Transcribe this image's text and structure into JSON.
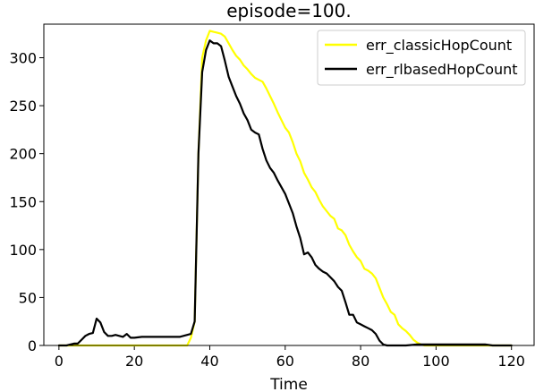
{
  "chart_data": {
    "type": "line",
    "title": "episode=100.",
    "xlabel": "Time",
    "ylabel": "",
    "xlim": [
      -4,
      126
    ],
    "ylim": [
      0,
      335
    ],
    "xticks": [
      0,
      20,
      40,
      60,
      80,
      100,
      120
    ],
    "yticks": [
      0,
      50,
      100,
      150,
      200,
      250,
      300
    ],
    "grid": false,
    "legend_position": "top-right",
    "series": [
      {
        "name": "err_classicHopCount",
        "color": "#ffff00",
        "x": [
          0,
          2,
          4,
          6,
          8,
          10,
          12,
          14,
          16,
          18,
          20,
          22,
          24,
          26,
          28,
          30,
          32,
          34,
          35,
          36,
          37,
          38,
          39,
          40,
          41,
          42,
          43,
          44,
          45,
          46,
          47,
          48,
          49,
          50,
          51,
          52,
          53,
          54,
          55,
          56,
          57,
          58,
          59,
          60,
          61,
          62,
          63,
          64,
          65,
          66,
          67,
          68,
          69,
          70,
          71,
          72,
          73,
          74,
          75,
          76,
          77,
          78,
          79,
          80,
          81,
          82,
          83,
          84,
          85,
          86,
          87,
          88,
          89,
          90,
          91,
          92,
          93,
          94,
          95,
          96,
          97,
          98,
          100,
          105,
          110,
          115,
          120
        ],
        "y": [
          0,
          0,
          0,
          0,
          0,
          0,
          0,
          0,
          0,
          0,
          0,
          0,
          0,
          0,
          0,
          0,
          0,
          0,
          8,
          25,
          200,
          300,
          318,
          328,
          327,
          326,
          325,
          322,
          315,
          308,
          302,
          298,
          292,
          288,
          283,
          279,
          277,
          275,
          268,
          260,
          252,
          243,
          235,
          227,
          222,
          212,
          200,
          192,
          180,
          173,
          165,
          160,
          152,
          145,
          140,
          135,
          132,
          122,
          120,
          115,
          105,
          98,
          92,
          88,
          80,
          78,
          75,
          70,
          60,
          50,
          43,
          35,
          32,
          22,
          18,
          15,
          11,
          6,
          3,
          1,
          0,
          0,
          0,
          0,
          0,
          0,
          0
        ]
      },
      {
        "name": "err_rlbasedHopCount",
        "color": "#000000",
        "x": [
          0,
          2,
          3,
          4,
          5,
          6,
          7,
          8,
          9,
          10,
          11,
          12,
          13,
          14,
          15,
          16,
          17,
          18,
          19,
          20,
          22,
          24,
          26,
          28,
          30,
          32,
          33,
          34,
          35,
          36,
          37,
          38,
          39,
          40,
          41,
          42,
          43,
          44,
          45,
          46,
          47,
          48,
          49,
          50,
          51,
          52,
          53,
          54,
          55,
          56,
          57,
          58,
          59,
          60,
          61,
          62,
          63,
          64,
          65,
          66,
          67,
          68,
          69,
          70,
          71,
          72,
          73,
          74,
          75,
          76,
          77,
          78,
          79,
          80,
          81,
          82,
          83,
          84,
          85,
          86,
          87,
          88,
          90,
          92,
          95,
          100,
          105,
          110,
          113,
          115,
          120
        ],
        "y": [
          0,
          0,
          1,
          2,
          2,
          6,
          10,
          12,
          13,
          28,
          24,
          14,
          10,
          10,
          11,
          10,
          9,
          12,
          8,
          8,
          9,
          9,
          9,
          9,
          9,
          9,
          10,
          11,
          12,
          25,
          200,
          285,
          308,
          318,
          315,
          315,
          312,
          297,
          280,
          270,
          260,
          252,
          242,
          235,
          225,
          222,
          220,
          205,
          193,
          185,
          180,
          172,
          165,
          158,
          148,
          138,
          124,
          112,
          95,
          97,
          92,
          84,
          80,
          77,
          75,
          71,
          67,
          61,
          57,
          45,
          32,
          32,
          24,
          22,
          20,
          18,
          16,
          12,
          5,
          1,
          0,
          0,
          0,
          0,
          1,
          1,
          1,
          1,
          1,
          0,
          0
        ]
      }
    ]
  }
}
